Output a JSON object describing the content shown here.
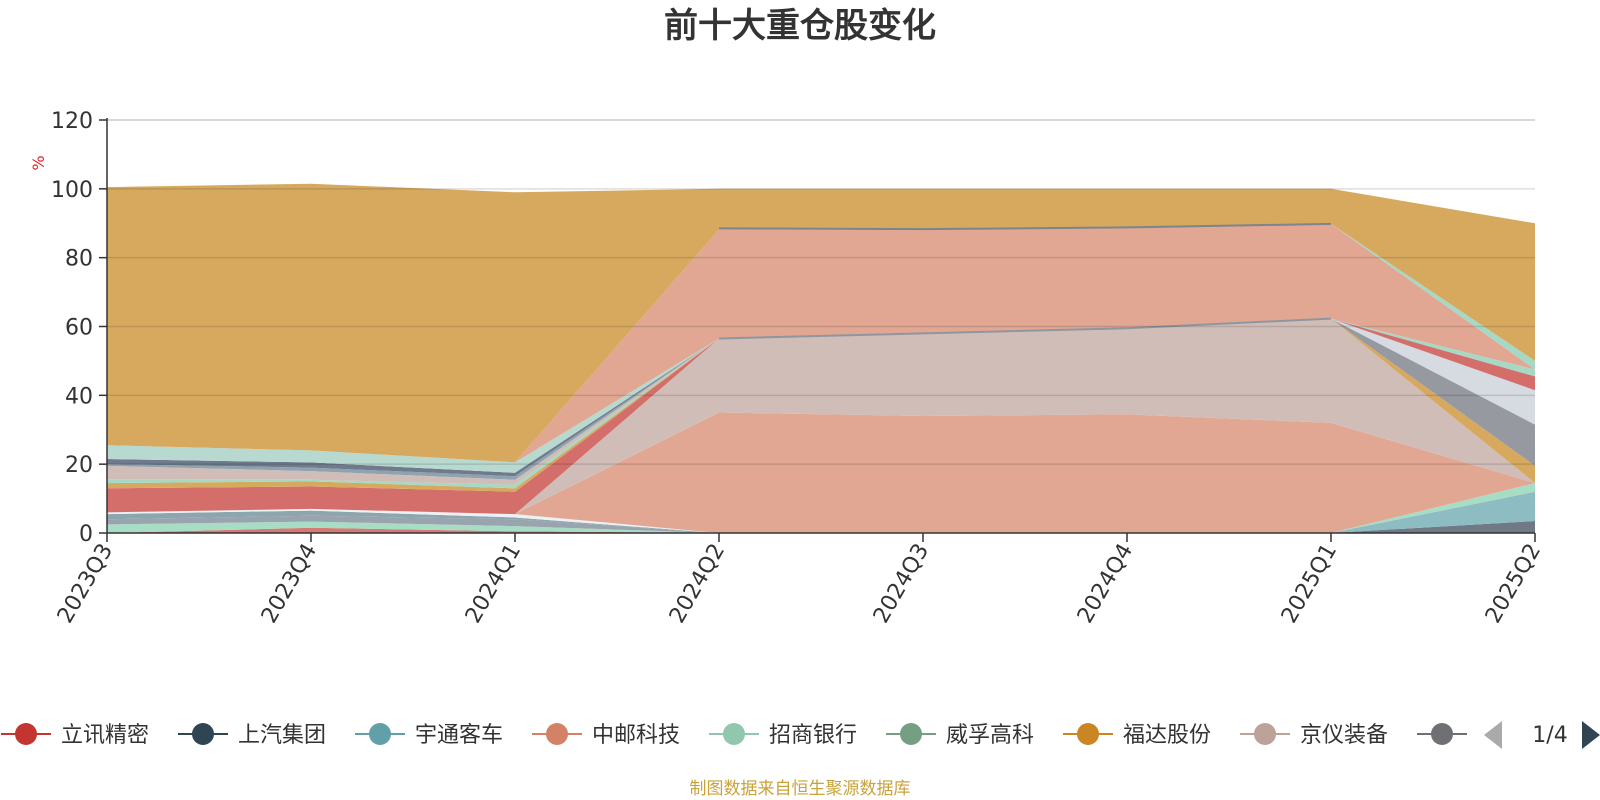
{
  "chart_data": {
    "type": "area",
    "title": "前十大重仓股变化",
    "ylabel": "%",
    "ylim": [
      0,
      120
    ],
    "yticks": [
      0,
      20,
      40,
      60,
      80,
      100,
      120
    ],
    "grid": true,
    "x": [
      "2023Q3",
      "2023Q4",
      "2024Q1",
      "2024Q2",
      "2024Q3",
      "2024Q4",
      "2025Q1",
      "2025Q2"
    ],
    "stacked": true,
    "series": [
      {
        "name": "",
        "color": "#6f7a86",
        "values": [
          0,
          0,
          0,
          0,
          0,
          0,
          0,
          3.5
        ]
      },
      {
        "name": "",
        "color": "#8dbcc3",
        "values": [
          0,
          0,
          0,
          0,
          0,
          0,
          0,
          8.5
        ]
      },
      {
        "name": "",
        "color": "#d47a72",
        "values": [
          0,
          1.5,
          0.5,
          0,
          0,
          0,
          0,
          0
        ]
      },
      {
        "name": "",
        "color": "#a7dcc5",
        "values": [
          2.5,
          1.8,
          1.5,
          0,
          0,
          0,
          0,
          2.5
        ]
      },
      {
        "name": "",
        "color": "#9aa4ae",
        "values": [
          1.5,
          1.7,
          2.0,
          0,
          0,
          0,
          0,
          0
        ]
      },
      {
        "name": "",
        "color": "#8ba6ae",
        "values": [
          1.5,
          1.5,
          0.5,
          0,
          0,
          0,
          0,
          0
        ]
      },
      {
        "name": "",
        "color": "#eef0f4",
        "values": [
          0.5,
          0.5,
          1.0,
          0,
          0,
          0,
          0,
          0
        ]
      },
      {
        "name": "中邮科技",
        "color": "#e1a793",
        "values": [
          0,
          0,
          0,
          35,
          34,
          34.5,
          32,
          0
        ]
      },
      {
        "name": "",
        "color": "#d0bdb8",
        "values": [
          0,
          0,
          0,
          21.5,
          24,
          25,
          30.3,
          0
        ]
      },
      {
        "name": "",
        "color": "#d7a95f",
        "values": [
          0,
          0,
          0,
          0,
          0,
          0,
          0,
          5
        ]
      },
      {
        "name": "",
        "color": "#96999f",
        "values": [
          0,
          0,
          0,
          0,
          0,
          0,
          0,
          12
        ]
      },
      {
        "name": "",
        "color": "#d6dae1",
        "values": [
          0,
          0,
          0,
          0,
          0,
          0,
          0,
          10
        ]
      },
      {
        "name": "立讯精密",
        "color": "#d46e6a",
        "values": [
          7,
          6.5,
          6.5,
          0,
          0,
          0,
          0,
          4
        ]
      },
      {
        "name": "",
        "color": "#d7a95f",
        "values": [
          1.5,
          1.5,
          1.0,
          0,
          0,
          0,
          0,
          0
        ]
      },
      {
        "name": "",
        "color": "#a5d9c6",
        "values": [
          1.0,
          0.5,
          1.0,
          0,
          0,
          0,
          0,
          2
        ]
      },
      {
        "name": "",
        "color": "#d1bdb8",
        "values": [
          4,
          2.5,
          1.5,
          0,
          0,
          0,
          0,
          0
        ]
      },
      {
        "name": "",
        "color": "#8fa2b0",
        "values": [
          0.5,
          1.0,
          1.0,
          0,
          0,
          0,
          0,
          0
        ]
      },
      {
        "name": "",
        "color": "#6f7b8d",
        "values": [
          1.5,
          1.5,
          1.0,
          0,
          0,
          0,
          0,
          0
        ]
      },
      {
        "name": "",
        "color": "#b8d9cf",
        "values": [
          4,
          3.5,
          3.0,
          0,
          0,
          0,
          0,
          0
        ]
      },
      {
        "name": "中邮科技",
        "color": "#e1a793",
        "values": [
          0,
          0,
          0,
          31.7,
          30,
          29.5,
          27.5,
          0
        ]
      },
      {
        "name": "",
        "color": "#a5d9c6",
        "values": [
          0,
          0,
          0,
          0,
          0,
          0,
          0,
          2.5
        ]
      },
      {
        "name": "福达股份",
        "color": "#d7a95f",
        "values": [
          75,
          77.5,
          78.5,
          11.8,
          12,
          11,
          10.2,
          40
        ]
      }
    ],
    "outline": [
      {
        "color": "#7d848c",
        "values": [
          null,
          null,
          null,
          88.5,
          88.3,
          88.8,
          89.8,
          null
        ]
      },
      {
        "color": "#8f96a0",
        "values": [
          null,
          null,
          null,
          56.5,
          58,
          59.5,
          62.3,
          null
        ]
      }
    ]
  },
  "legend": {
    "items": [
      {
        "label": "立讯精密",
        "color": "#c23531"
      },
      {
        "label": "上汽集团",
        "color": "#2f4554"
      },
      {
        "label": "宇通客车",
        "color": "#61a0a8"
      },
      {
        "label": "中邮科技",
        "color": "#d48265"
      },
      {
        "label": "招商银行",
        "color": "#91c7ae"
      },
      {
        "label": "威孚高科",
        "color": "#749f83"
      },
      {
        "label": "福达股份",
        "color": "#ca8622"
      },
      {
        "label": "京仪装备",
        "color": "#bda29a"
      },
      {
        "label": "",
        "color": "#6e7074"
      }
    ],
    "page": "1/4"
  },
  "footer": "制图数据来自恒生聚源数据库"
}
